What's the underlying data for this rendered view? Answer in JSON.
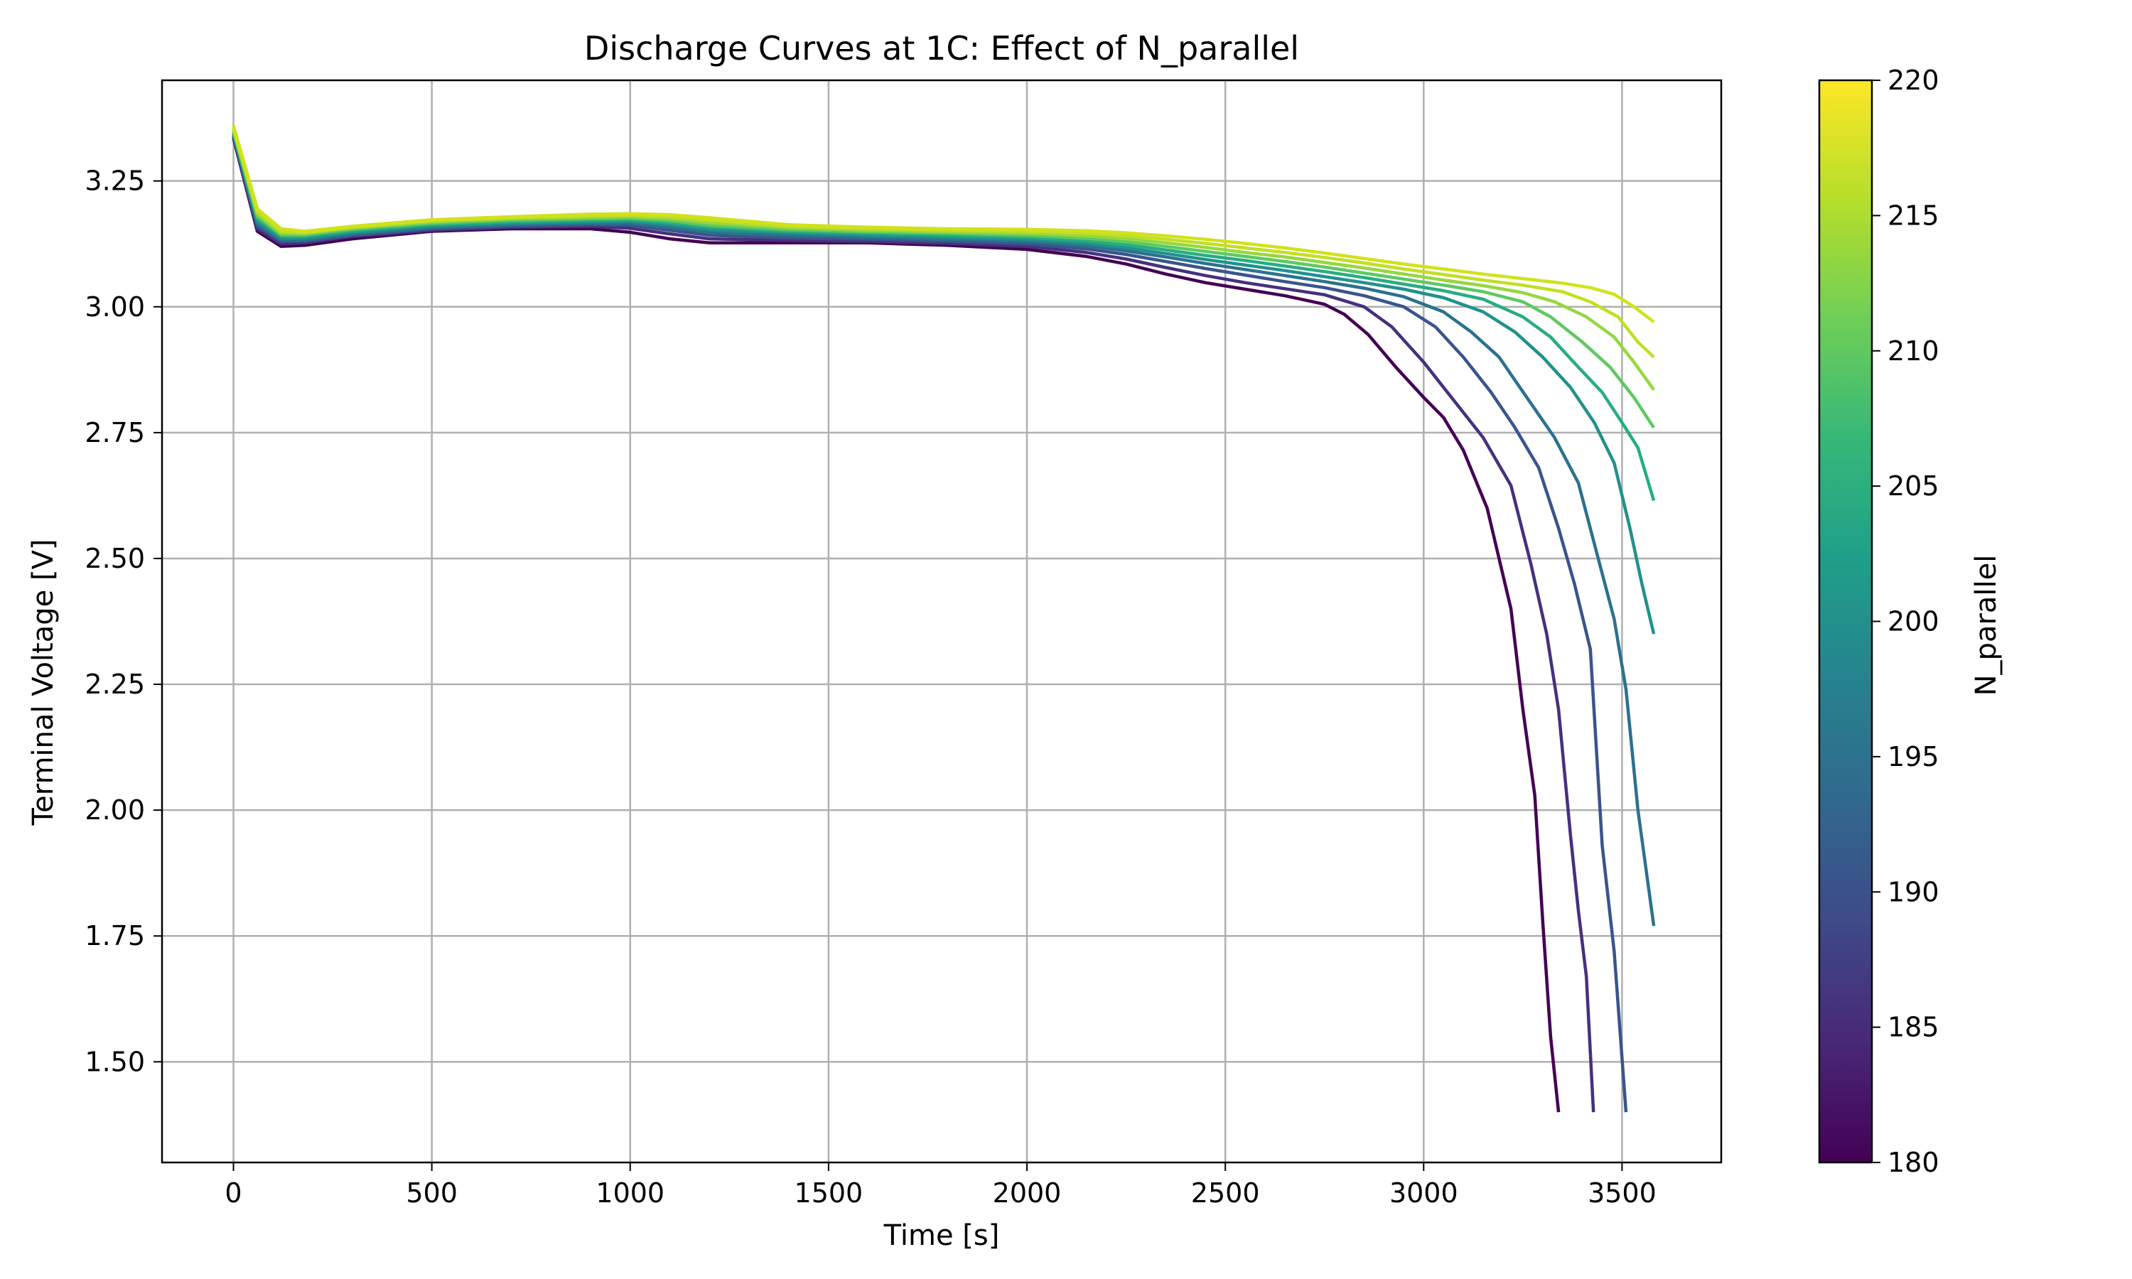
{
  "chart_data": {
    "type": "line",
    "title": "Discharge Curves at 1C: Effect of N_parallel",
    "xlabel": "Time [s]",
    "ylabel": "Terminal Voltage [V]",
    "xlim": [
      -180,
      3750
    ],
    "ylim": [
      1.3,
      3.45
    ],
    "xticks": [
      0,
      500,
      1000,
      1500,
      2000,
      2500,
      3000,
      3500
    ],
    "yticks": [
      1.5,
      1.75,
      2.0,
      2.25,
      2.5,
      2.75,
      3.0,
      3.25
    ],
    "ytick_labels": [
      "1.50",
      "1.75",
      "2.00",
      "2.25",
      "2.50",
      "2.75",
      "3.00",
      "3.25"
    ],
    "grid": true,
    "legend": "none",
    "colorbar": {
      "label": "N_parallel",
      "range": [
        180,
        220
      ],
      "ticks": [
        180,
        185,
        190,
        195,
        200,
        205,
        210,
        215,
        220
      ],
      "colormap": "viridis",
      "colors": [
        "#440154",
        "#482878",
        "#3e4a89",
        "#31688e",
        "#26828e",
        "#1f9e89",
        "#35b779",
        "#6ece58",
        "#b5de2b",
        "#fde725"
      ]
    },
    "series": [
      {
        "n_parallel": 180,
        "color": "#440154",
        "x": [
          0,
          60,
          120,
          180,
          300,
          500,
          700,
          900,
          1000,
          1100,
          1200,
          1400,
          1600,
          1800,
          2000,
          2150,
          2250,
          2350,
          2450,
          2550,
          2650,
          2750,
          2800,
          2860,
          2930,
          3000,
          3050,
          3100,
          3160,
          3220,
          3250,
          3280,
          3300,
          3320,
          3340
        ],
        "y": [
          3.335,
          3.15,
          3.12,
          3.122,
          3.135,
          3.15,
          3.155,
          3.155,
          3.148,
          3.135,
          3.127,
          3.127,
          3.127,
          3.122,
          3.114,
          3.1,
          3.085,
          3.065,
          3.048,
          3.035,
          3.022,
          3.005,
          2.985,
          2.945,
          2.88,
          2.82,
          2.78,
          2.715,
          2.6,
          2.4,
          2.2,
          2.03,
          1.78,
          1.55,
          1.4
        ]
      },
      {
        "n_parallel": 185,
        "color": "#46307e",
        "x": [
          0,
          60,
          120,
          180,
          300,
          500,
          700,
          900,
          1000,
          1100,
          1200,
          1400,
          1600,
          1800,
          2000,
          2150,
          2250,
          2350,
          2450,
          2550,
          2650,
          2750,
          2850,
          2920,
          3000,
          3080,
          3150,
          3220,
          3270,
          3310,
          3340,
          3370,
          3390,
          3410,
          3428
        ],
        "y": [
          3.338,
          3.155,
          3.125,
          3.127,
          3.14,
          3.152,
          3.158,
          3.16,
          3.156,
          3.145,
          3.135,
          3.132,
          3.13,
          3.126,
          3.12,
          3.108,
          3.095,
          3.078,
          3.062,
          3.048,
          3.036,
          3.024,
          3.0,
          2.96,
          2.89,
          2.81,
          2.74,
          2.645,
          2.49,
          2.35,
          2.2,
          1.95,
          1.8,
          1.67,
          1.4
        ]
      },
      {
        "n_parallel": 190,
        "color": "#3a548c",
        "x": [
          0,
          60,
          120,
          180,
          300,
          500,
          700,
          900,
          1000,
          1100,
          1200,
          1400,
          1600,
          1800,
          2000,
          2150,
          2250,
          2350,
          2450,
          2550,
          2650,
          2750,
          2850,
          2950,
          3030,
          3100,
          3170,
          3230,
          3290,
          3340,
          3380,
          3420,
          3450,
          3480,
          3510
        ],
        "y": [
          3.34,
          3.16,
          3.13,
          3.13,
          3.142,
          3.155,
          3.16,
          3.163,
          3.162,
          3.152,
          3.142,
          3.137,
          3.134,
          3.13,
          3.125,
          3.115,
          3.104,
          3.09,
          3.076,
          3.063,
          3.05,
          3.038,
          3.022,
          3.0,
          2.96,
          2.9,
          2.83,
          2.76,
          2.68,
          2.56,
          2.45,
          2.32,
          1.93,
          1.72,
          1.4
        ]
      },
      {
        "n_parallel": 195,
        "color": "#2c718e",
        "x": [
          0,
          60,
          120,
          180,
          300,
          500,
          700,
          900,
          1000,
          1100,
          1200,
          1400,
          1600,
          1800,
          2000,
          2150,
          2250,
          2350,
          2450,
          2550,
          2650,
          2750,
          2850,
          2950,
          3050,
          3120,
          3190,
          3260,
          3330,
          3390,
          3440,
          3480,
          3510,
          3540,
          3580
        ],
        "y": [
          3.342,
          3.165,
          3.133,
          3.133,
          3.145,
          3.157,
          3.163,
          3.166,
          3.166,
          3.158,
          3.148,
          3.142,
          3.138,
          3.134,
          3.13,
          3.121,
          3.111,
          3.099,
          3.086,
          3.074,
          3.062,
          3.05,
          3.037,
          3.02,
          2.99,
          2.95,
          2.9,
          2.82,
          2.74,
          2.65,
          2.5,
          2.38,
          2.24,
          2.0,
          1.77
        ]
      },
      {
        "n_parallel": 200,
        "color": "#21918c",
        "x": [
          0,
          60,
          120,
          180,
          300,
          500,
          700,
          900,
          1000,
          1100,
          1200,
          1400,
          1600,
          1800,
          2000,
          2150,
          2250,
          2350,
          2450,
          2550,
          2650,
          2750,
          2850,
          2950,
          3050,
          3150,
          3230,
          3300,
          3370,
          3430,
          3480,
          3520,
          3550,
          3580
        ],
        "y": [
          3.345,
          3.17,
          3.136,
          3.136,
          3.148,
          3.16,
          3.166,
          3.169,
          3.17,
          3.163,
          3.153,
          3.147,
          3.142,
          3.138,
          3.134,
          3.126,
          3.117,
          3.106,
          3.094,
          3.083,
          3.072,
          3.06,
          3.048,
          3.035,
          3.018,
          2.99,
          2.95,
          2.9,
          2.84,
          2.77,
          2.69,
          2.56,
          2.45,
          2.35
        ]
      },
      {
        "n_parallel": 205,
        "color": "#27ad81",
        "x": [
          0,
          60,
          120,
          180,
          300,
          500,
          700,
          900,
          1000,
          1100,
          1200,
          1400,
          1600,
          1800,
          2000,
          2150,
          2250,
          2350,
          2450,
          2550,
          2650,
          2750,
          2850,
          2950,
          3050,
          3150,
          3250,
          3320,
          3390,
          3450,
          3500,
          3540,
          3580
        ],
        "y": [
          3.347,
          3.175,
          3.14,
          3.14,
          3.151,
          3.163,
          3.169,
          3.172,
          3.173,
          3.167,
          3.158,
          3.15,
          3.146,
          3.142,
          3.138,
          3.131,
          3.123,
          3.113,
          3.102,
          3.092,
          3.081,
          3.07,
          3.058,
          3.045,
          3.032,
          3.015,
          2.98,
          2.94,
          2.88,
          2.83,
          2.77,
          2.72,
          2.615
        ]
      },
      {
        "n_parallel": 210,
        "color": "#5ec962",
        "x": [
          0,
          60,
          120,
          180,
          300,
          500,
          700,
          900,
          1000,
          1100,
          1200,
          1400,
          1600,
          1800,
          2000,
          2150,
          2250,
          2350,
          2450,
          2550,
          2650,
          2750,
          2850,
          2950,
          3050,
          3150,
          3250,
          3320,
          3400,
          3470,
          3530,
          3580
        ],
        "y": [
          3.35,
          3.18,
          3.143,
          3.143,
          3.154,
          3.166,
          3.172,
          3.175,
          3.176,
          3.171,
          3.162,
          3.153,
          3.149,
          3.146,
          3.142,
          3.136,
          3.129,
          3.12,
          3.11,
          3.1,
          3.09,
          3.079,
          3.067,
          3.055,
          3.043,
          3.03,
          3.01,
          2.98,
          2.93,
          2.88,
          2.82,
          2.76
        ]
      },
      {
        "n_parallel": 215,
        "color": "#95d840",
        "x": [
          0,
          60,
          120,
          180,
          300,
          500,
          700,
          900,
          1000,
          1100,
          1200,
          1400,
          1600,
          1800,
          2000,
          2150,
          2250,
          2350,
          2450,
          2550,
          2650,
          2750,
          2850,
          2950,
          3050,
          3150,
          3250,
          3330,
          3410,
          3480,
          3530,
          3580
        ],
        "y": [
          3.352,
          3.185,
          3.146,
          3.146,
          3.157,
          3.169,
          3.175,
          3.178,
          3.179,
          3.175,
          3.167,
          3.157,
          3.152,
          3.149,
          3.146,
          3.141,
          3.135,
          3.127,
          3.118,
          3.108,
          3.099,
          3.088,
          3.077,
          3.065,
          3.053,
          3.042,
          3.028,
          3.01,
          2.98,
          2.94,
          2.89,
          2.835
        ]
      },
      {
        "n_parallel": 220,
        "color": "#c2df23",
        "x": [
          0,
          60,
          120,
          180,
          300,
          500,
          700,
          900,
          1000,
          1100,
          1200,
          1400,
          1600,
          1800,
          2000,
          2150,
          2250,
          2350,
          2450,
          2550,
          2650,
          2750,
          2850,
          2950,
          3050,
          3150,
          3250,
          3350,
          3420,
          3490,
          3540,
          3580
        ],
        "y": [
          3.355,
          3.19,
          3.15,
          3.147,
          3.158,
          3.171,
          3.177,
          3.181,
          3.182,
          3.179,
          3.172,
          3.16,
          3.155,
          3.152,
          3.15,
          3.146,
          3.141,
          3.134,
          3.126,
          3.117,
          3.108,
          3.098,
          3.087,
          3.075,
          3.064,
          3.053,
          3.043,
          3.03,
          3.01,
          2.98,
          2.93,
          2.9
        ]
      },
      {
        "n_parallel": 220,
        "color": "#d1e21b",
        "x": [
          0,
          60,
          120,
          180,
          300,
          500,
          700,
          900,
          1000,
          1100,
          1200,
          1400,
          1600,
          1800,
          2000,
          2150,
          2250,
          2350,
          2450,
          2550,
          2650,
          2750,
          2850,
          2950,
          3050,
          3150,
          3250,
          3350,
          3420,
          3480,
          3530,
          3580
        ],
        "y": [
          3.36,
          3.195,
          3.155,
          3.15,
          3.16,
          3.173,
          3.179,
          3.184,
          3.185,
          3.183,
          3.177,
          3.163,
          3.158,
          3.155,
          3.154,
          3.151,
          3.147,
          3.141,
          3.134,
          3.126,
          3.117,
          3.107,
          3.096,
          3.085,
          3.075,
          3.065,
          3.056,
          3.047,
          3.038,
          3.025,
          3.0,
          2.97
        ]
      }
    ]
  }
}
